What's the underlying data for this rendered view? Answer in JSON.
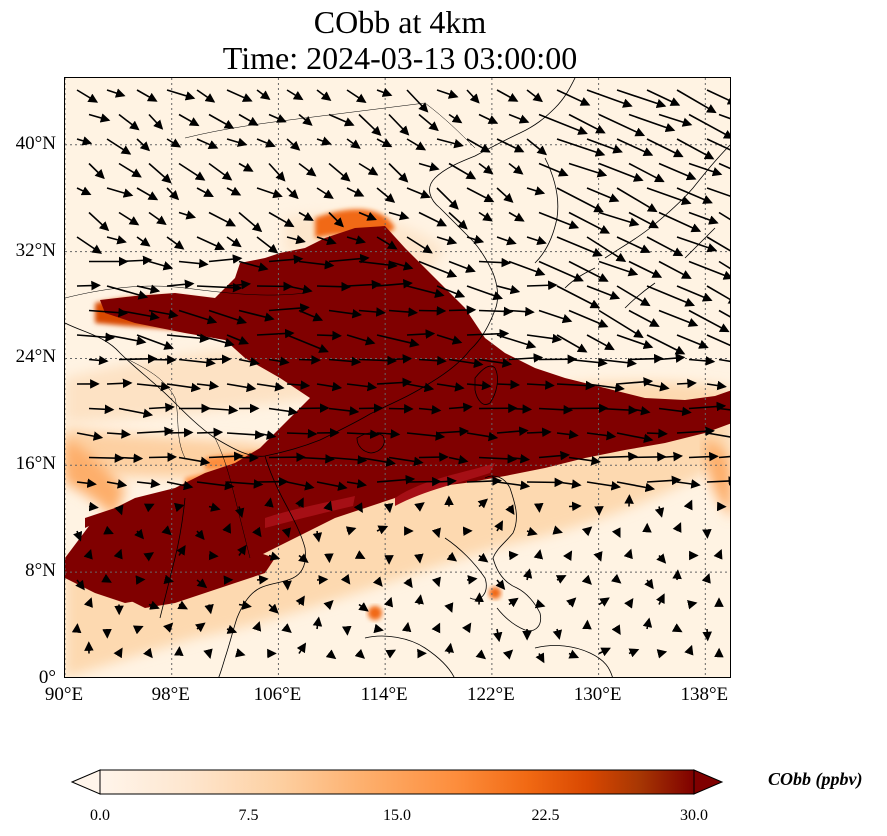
{
  "title": {
    "line1": "CObb at 4km",
    "line2": "Time: 2024-03-13 03:00:00"
  },
  "map": {
    "projection": "PlateCarree",
    "lon_range": [
      90,
      140
    ],
    "lat_range": [
      0,
      45
    ],
    "gridlines": "dotted",
    "field": "CObb concentration (filled)",
    "vectors": "wind arrows",
    "colormap": [
      "#fff5eb",
      "#fee6ce",
      "#fdd0a2",
      "#fdae6b",
      "#fd8d3c",
      "#f16913",
      "#d94801",
      "#a63603",
      "#7f0000"
    ],
    "x_ticks": [
      {
        "value": 90,
        "label": "90°E"
      },
      {
        "value": 98,
        "label": "98°E"
      },
      {
        "value": 106,
        "label": "106°E"
      },
      {
        "value": 114,
        "label": "114°E"
      },
      {
        "value": 122,
        "label": "122°E"
      },
      {
        "value": 130,
        "label": "130°E"
      },
      {
        "value": 138,
        "label": "138°E"
      }
    ],
    "y_ticks": [
      {
        "value": 0,
        "label": "0°"
      },
      {
        "value": 8,
        "label": "8°N"
      },
      {
        "value": 16,
        "label": "16°N"
      },
      {
        "value": 24,
        "label": "24°N"
      },
      {
        "value": 32,
        "label": "32°N"
      },
      {
        "value": 40,
        "label": "40°N"
      }
    ]
  },
  "colorbar": {
    "label": "CObb (ppbv)",
    "min": 0,
    "max": 30,
    "extend": "both",
    "ticks": [
      "0.0",
      "7.5",
      "15.0",
      "22.5",
      "30.0"
    ]
  }
}
